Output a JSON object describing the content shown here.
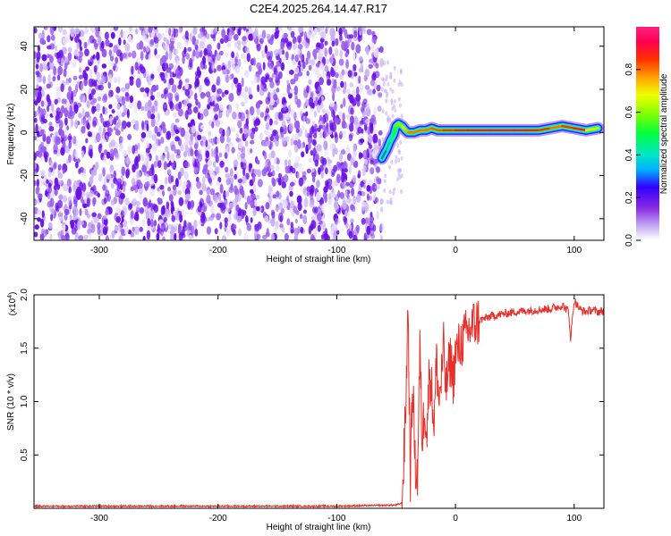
{
  "title": "C2E4.2025.264.14.47.R17",
  "chart_data": [
    {
      "type": "heatmap",
      "xlabel": "Height of straight line (km)",
      "ylabel": "Frequency (Hz)",
      "xlim": [
        -355,
        125
      ],
      "ylim": [
        -50,
        49
      ],
      "xticks": [
        -300,
        -200,
        -100,
        0,
        100
      ],
      "xtick_labels": [
        "-300",
        "-200",
        "-100",
        "0",
        "100"
      ],
      "yticks": [
        -40,
        -20,
        0,
        20,
        40
      ],
      "ytick_labels": [
        "-40",
        "-20",
        "0",
        "20",
        "40"
      ],
      "noise_region_x": [
        -355,
        -62
      ],
      "transition_x": [
        -62,
        -45
      ],
      "signal_track": {
        "x": [
          -62,
          -58,
          -55,
          -52,
          -50,
          -48,
          -45,
          -42,
          -40,
          -35,
          -30,
          -25,
          -20,
          -15,
          -10,
          -5,
          0,
          10,
          20,
          30,
          40,
          50,
          60,
          70,
          80,
          90,
          100,
          110,
          120
        ],
        "freq": [
          -12,
          -8,
          -4,
          -1,
          3,
          4,
          3,
          1,
          0,
          0,
          1,
          1,
          2,
          1,
          1,
          1,
          1,
          1,
          1,
          1,
          1,
          1,
          1,
          1,
          2,
          3,
          2,
          1,
          2
        ],
        "amplitude": [
          0.3,
          0.35,
          0.4,
          0.5,
          0.6,
          0.6,
          0.7,
          0.75,
          0.8,
          0.8,
          0.8,
          0.8,
          0.82,
          0.82,
          0.85,
          0.85,
          0.9,
          0.92,
          0.95,
          0.95,
          0.95,
          0.95,
          0.9,
          0.85,
          0.8,
          0.85,
          0.9,
          0.7,
          0.6
        ]
      },
      "colorbar": {
        "label": "Normalized spectral amplitude",
        "range": [
          0,
          1
        ],
        "ticks": [
          0.0,
          0.2,
          0.4,
          0.6,
          0.8
        ],
        "tick_labels": [
          "0.0",
          "0.2",
          "0.4",
          "0.6",
          "0.8"
        ]
      }
    },
    {
      "type": "line",
      "xlabel": "Height of straight line (km)",
      "ylabel": "SNR (10 * v/v)",
      "y_multiplier_label": "(x10",
      "y_multiplier_exp": "4",
      "y_multiplier_close": ")",
      "xlim": [
        -355,
        125
      ],
      "ylim": [
        0,
        2.0
      ],
      "xticks": [
        -300,
        -200,
        -100,
        0,
        100
      ],
      "xtick_labels": [
        "-300",
        "-200",
        "-100",
        "0",
        "100"
      ],
      "yticks": [
        0.5,
        1.0,
        1.5,
        2.0
      ],
      "ytick_labels": [
        "0.5",
        "1.0",
        "1.5",
        "2.0"
      ],
      "color": "#e8302a",
      "series": [
        {
          "name": "SNR",
          "x": [
            -355,
            -300,
            -200,
            -100,
            -50,
            -45,
            -42,
            -40,
            -38,
            -36,
            -34,
            -32,
            -30,
            -28,
            -26,
            -24,
            -22,
            -20,
            -18,
            -16,
            -14,
            -12,
            -10,
            -8,
            -6,
            -4,
            -2,
            0,
            5,
            10,
            15,
            20,
            25,
            30,
            40,
            50,
            60,
            70,
            80,
            90,
            95,
            97,
            100,
            105,
            110,
            115,
            120,
            125
          ],
          "y": [
            0.02,
            0.02,
            0.02,
            0.02,
            0.03,
            0.05,
            0.9,
            1.9,
            0.3,
            1.2,
            0.4,
            0.3,
            1.5,
            0.6,
            1.0,
            0.7,
            1.3,
            1.1,
            0.8,
            1.4,
            1.0,
            1.2,
            1.5,
            1.1,
            1.3,
            1.4,
            1.2,
            1.45,
            1.55,
            1.65,
            1.72,
            1.76,
            1.78,
            1.8,
            1.82,
            1.84,
            1.85,
            1.86,
            1.87,
            1.9,
            1.85,
            1.6,
            1.95,
            1.86,
            1.84,
            1.86,
            1.84,
            1.85
          ]
        }
      ]
    }
  ]
}
